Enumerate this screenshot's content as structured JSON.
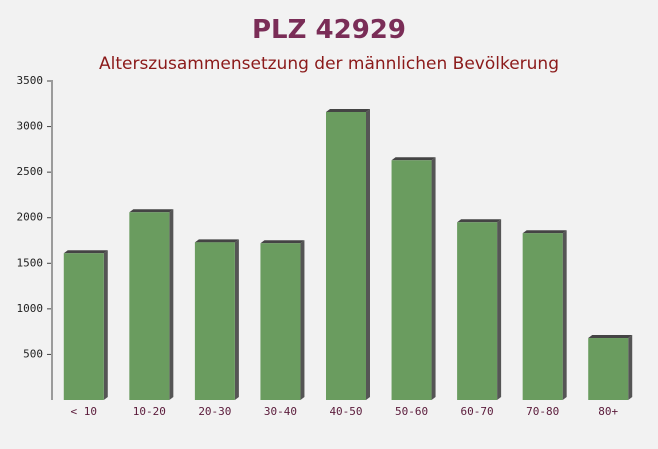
{
  "chart_data": {
    "type": "bar",
    "title": "PLZ 42929",
    "subtitle": "Alterszusammensetzung der männlichen Bevölkerung",
    "categories": [
      "< 10",
      "10-20",
      "20-30",
      "30-40",
      "40-50",
      "50-60",
      "60-70",
      "70-80",
      "80+"
    ],
    "values": [
      1610,
      2060,
      1730,
      1720,
      3160,
      2630,
      1950,
      1830,
      680
    ],
    "color": "#6a9c5f",
    "ylim": [
      0,
      3500
    ],
    "yticks": [
      500,
      1000,
      1500,
      2000,
      2500,
      3000,
      3500
    ],
    "grid": false
  }
}
